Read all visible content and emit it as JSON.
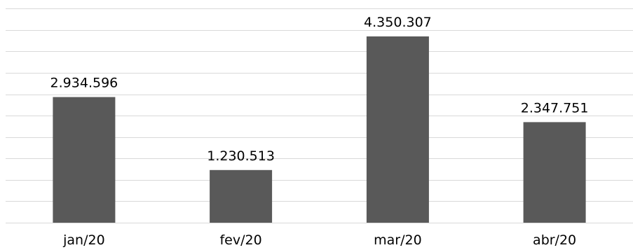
{
  "chart_data": {
    "type": "bar",
    "title": "",
    "xlabel": "",
    "ylabel": "",
    "categories": [
      "jan/20",
      "fev/20",
      "mar/20",
      "abr/20"
    ],
    "values": [
      2934596,
      1230513,
      4350307,
      2347751
    ],
    "data_labels": [
      "2.934.596",
      "1.230.513",
      "4.350.307",
      "2.347.751"
    ],
    "ylim": [
      0,
      5000000
    ],
    "grid": true,
    "legend": "none",
    "colors": {
      "bar": "#595959",
      "grid": "#d9d9d9"
    }
  }
}
